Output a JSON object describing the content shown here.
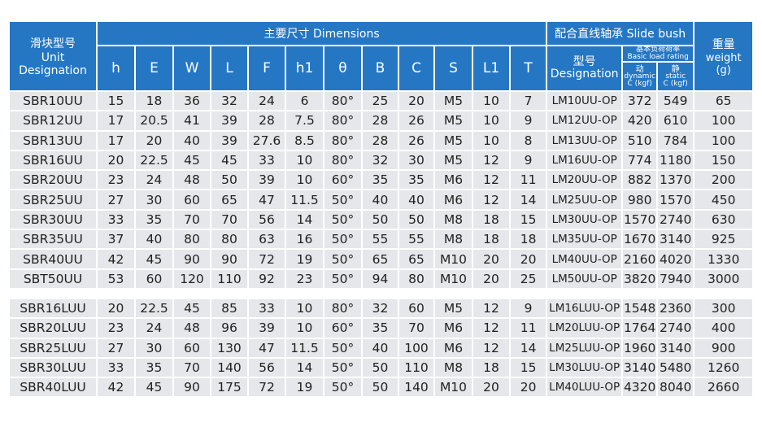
{
  "header": {
    "unit": [
      "滑块型号",
      "Unit",
      "Designation"
    ],
    "dimensions": "主要尺寸 Dimensions",
    "dim_columns": [
      "h",
      "E",
      "W",
      "L",
      "F",
      "h1",
      "θ",
      "B",
      "C",
      "S",
      "L1",
      "T"
    ],
    "slide_bush": "配合直线轴承 Slide bush",
    "designation": [
      "型号",
      "Designation"
    ],
    "load_rating": [
      "基本负荷荷率",
      "Basic load rating"
    ],
    "dynamic": [
      "动",
      "dynamic",
      "C (kgf)"
    ],
    "static": [
      "静",
      "static",
      "C (kgf)"
    ],
    "weight": [
      "重量",
      "weight",
      "(g)"
    ]
  },
  "groups": [
    {
      "rows": [
        [
          "SBR10UU",
          "15",
          "18",
          "36",
          "32",
          "24",
          "6",
          "80°",
          "25",
          "20",
          "M5",
          "10",
          "7",
          "LM10UU-OP",
          "372",
          "549",
          "65"
        ],
        [
          "SBR12UU",
          "17",
          "20.5",
          "41",
          "39",
          "28",
          "7.5",
          "80°",
          "28",
          "26",
          "M5",
          "10",
          "9",
          "LM12UU-OP",
          "420",
          "610",
          "100"
        ],
        [
          "SBR13UU",
          "17",
          "20",
          "40",
          "39",
          "27.6",
          "8.5",
          "80°",
          "28",
          "26",
          "M5",
          "10",
          "8",
          "LM13UU-OP",
          "510",
          "784",
          "100"
        ],
        [
          "SBR16UU",
          "20",
          "22.5",
          "45",
          "45",
          "33",
          "10",
          "80°",
          "32",
          "30",
          "M5",
          "12",
          "9",
          "LM16UU-OP",
          "774",
          "1180",
          "150"
        ],
        [
          "SBR20UU",
          "23",
          "24",
          "48",
          "50",
          "39",
          "10",
          "60°",
          "35",
          "35",
          "M6",
          "12",
          "11",
          "LM20UU-OP",
          "882",
          "1370",
          "200"
        ],
        [
          "SBR25UU",
          "27",
          "30",
          "60",
          "65",
          "47",
          "11.5",
          "50°",
          "40",
          "40",
          "M6",
          "12",
          "14",
          "LM25UU-OP",
          "980",
          "1570",
          "450"
        ],
        [
          "SBR30UU",
          "33",
          "35",
          "70",
          "70",
          "56",
          "14",
          "50°",
          "50",
          "50",
          "M8",
          "18",
          "15",
          "LM30UU-OP",
          "1570",
          "2740",
          "630"
        ],
        [
          "SBR35UU",
          "37",
          "40",
          "80",
          "80",
          "63",
          "16",
          "50°",
          "55",
          "55",
          "M8",
          "18",
          "18",
          "LM35UU-OP",
          "1670",
          "3140",
          "925"
        ],
        [
          "SBR40UU",
          "42",
          "45",
          "90",
          "90",
          "72",
          "19",
          "50°",
          "65",
          "65",
          "M10",
          "20",
          "20",
          "LM40UU-OP",
          "2160",
          "4020",
          "1330"
        ],
        [
          "SBT50UU",
          "53",
          "60",
          "120",
          "110",
          "92",
          "23",
          "50°",
          "94",
          "80",
          "M10",
          "20",
          "25",
          "LM50UU-OP",
          "3820",
          "7940",
          "3000"
        ]
      ]
    },
    {
      "rows": [
        [
          "SBR16LUU",
          "20",
          "22.5",
          "45",
          "85",
          "33",
          "10",
          "80°",
          "32",
          "60",
          "M5",
          "12",
          "9",
          "LM16LUU-OP",
          "1548",
          "2360",
          "300"
        ],
        [
          "SBR20LUU",
          "23",
          "24",
          "48",
          "96",
          "39",
          "10",
          "60°",
          "35",
          "70",
          "M6",
          "12",
          "11",
          "LM20LUU-OP",
          "1764",
          "2740",
          "400"
        ],
        [
          "SBR25LUU",
          "27",
          "30",
          "60",
          "130",
          "47",
          "11.5",
          "50°",
          "40",
          "100",
          "M6",
          "12",
          "14",
          "LM25LUU-OP",
          "1960",
          "3140",
          "900"
        ],
        [
          "SBR30LUU",
          "33",
          "35",
          "70",
          "140",
          "56",
          "14",
          "50°",
          "50",
          "110",
          "M8",
          "18",
          "15",
          "LM30LUU-OP",
          "3140",
          "5480",
          "1260"
        ],
        [
          "SBR40LUU",
          "42",
          "45",
          "90",
          "175",
          "72",
          "19",
          "50°",
          "50",
          "140",
          "M10",
          "20",
          "20",
          "LM40LUU-OP",
          "4320",
          "8040",
          "2660"
        ]
      ]
    }
  ]
}
